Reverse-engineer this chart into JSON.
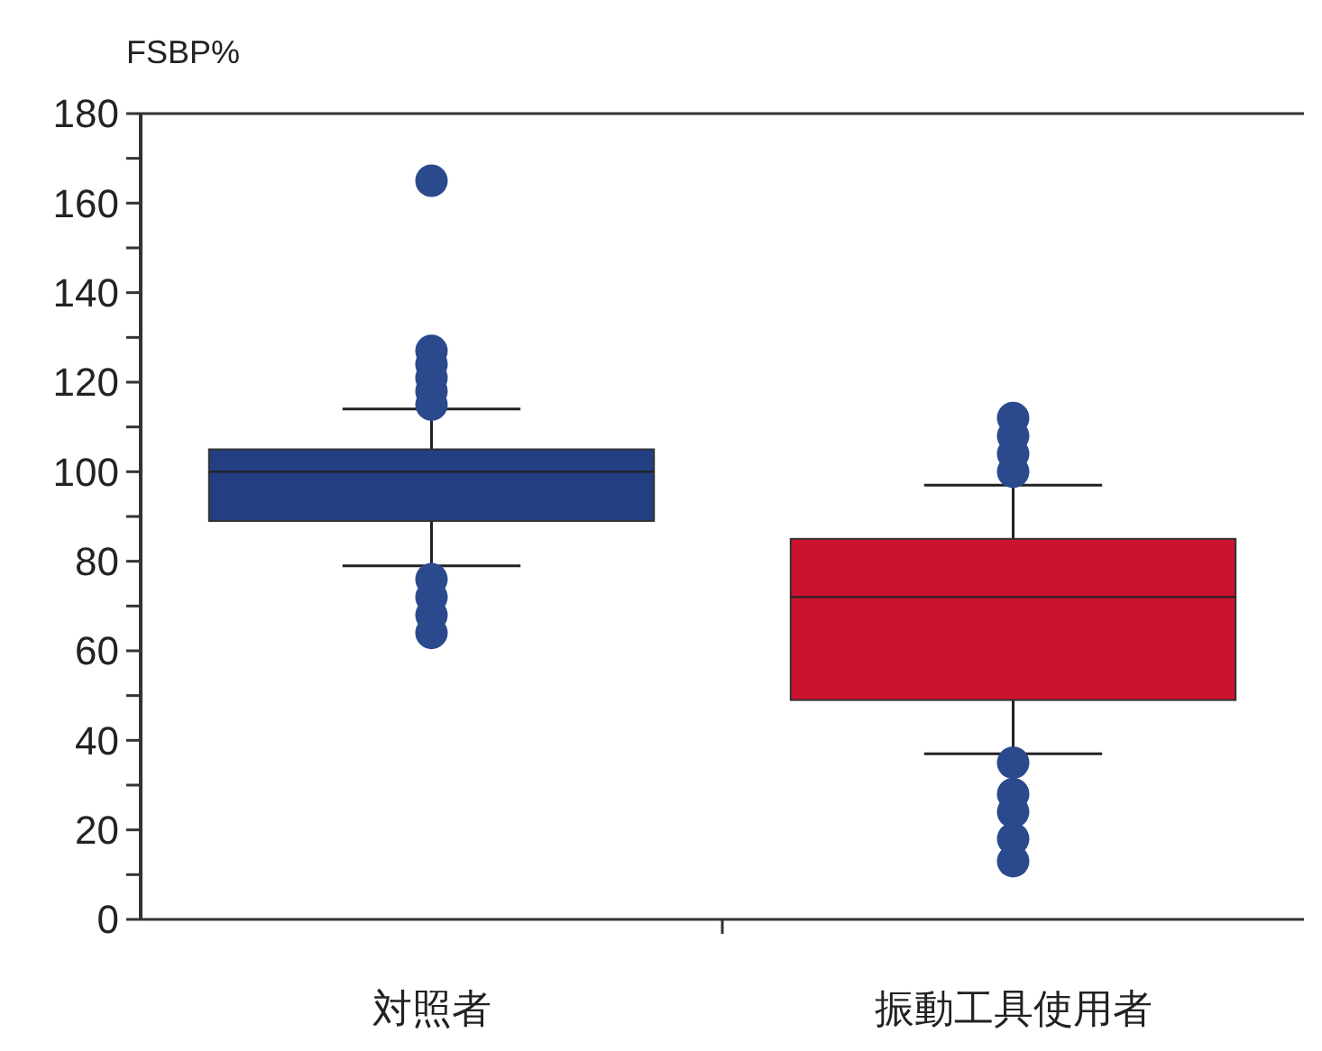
{
  "chart_data": {
    "type": "box",
    "ylabel": "FSBP%",
    "categories": [
      "対照者",
      "振動工具使用者"
    ],
    "colors": [
      "#233f82",
      "#cc1230"
    ],
    "boxes": [
      {
        "low": 79,
        "q1": 89,
        "median": 100,
        "q3": 105,
        "high": 114,
        "outliers": [
          165,
          127,
          124,
          121,
          118,
          115,
          76,
          72,
          68,
          64
        ]
      },
      {
        "low": 37,
        "q1": 49,
        "median": 72,
        "q3": 85,
        "high": 97,
        "outliers": [
          112,
          108,
          104,
          100,
          35,
          28,
          24,
          18,
          13
        ]
      }
    ],
    "ylim": [
      0,
      180
    ],
    "yticks": [
      0,
      {
        "value": 10,
        "label": null
      },
      20,
      {
        "value": 30,
        "label": null
      },
      40,
      {
        "value": 50,
        "label": null
      },
      60,
      {
        "value": 70,
        "label": null
      },
      80,
      {
        "value": 90,
        "label": null
      },
      100,
      {
        "value": 110,
        "label": null
      },
      120,
      {
        "value": 130,
        "label": null
      },
      140,
      {
        "value": 150,
        "label": null
      },
      160,
      {
        "value": 170,
        "label": null
      },
      180
    ],
    "grid": false
  }
}
